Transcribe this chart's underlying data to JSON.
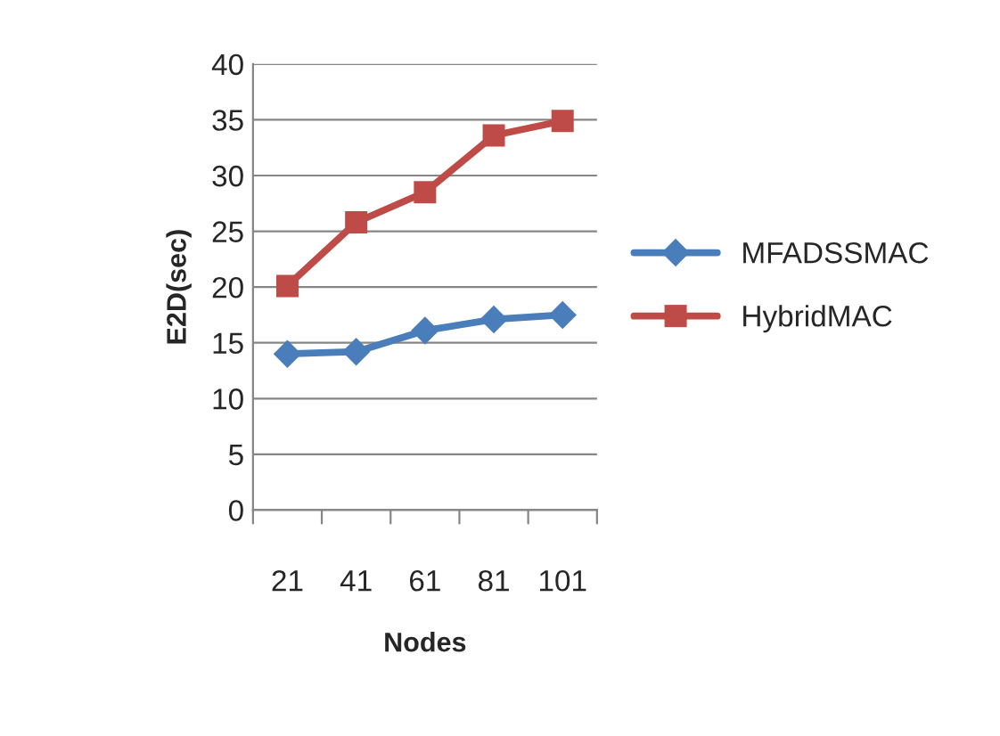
{
  "chart_data": {
    "type": "line",
    "xlabel": "Nodes",
    "ylabel": "E2D(sec)",
    "categories": [
      "21",
      "41",
      "61",
      "81",
      "101"
    ],
    "series": [
      {
        "name": "MFADSSMAC",
        "color": "#4a7ebb",
        "marker": "diamond",
        "values": [
          14.0,
          14.2,
          16.1,
          17.1,
          17.5
        ]
      },
      {
        "name": "HybridMAC",
        "color": "#be4b48",
        "marker": "square",
        "values": [
          20.1,
          25.8,
          28.5,
          33.6,
          34.9
        ]
      }
    ],
    "ylim": [
      0,
      40
    ],
    "yticks": [
      0,
      5,
      10,
      15,
      20,
      25,
      30,
      35,
      40
    ],
    "grid": "y",
    "legend": "right"
  }
}
